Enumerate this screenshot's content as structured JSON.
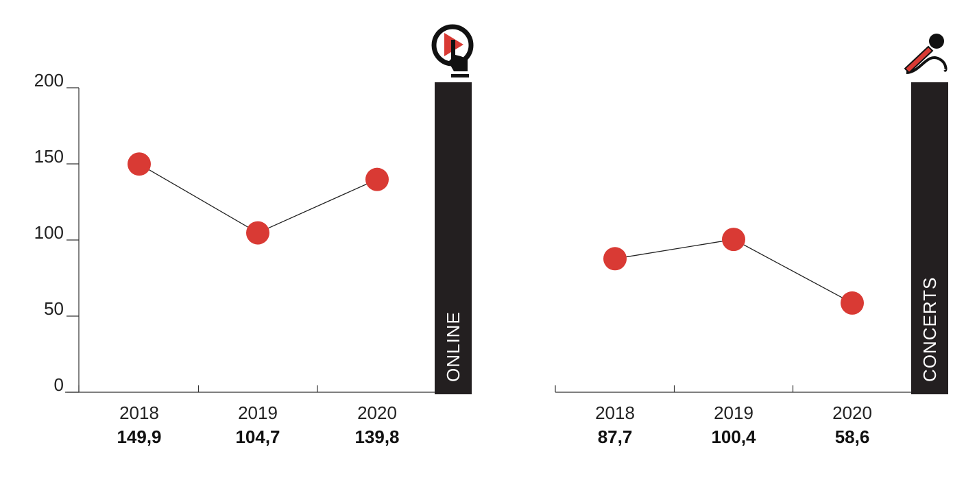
{
  "chart_data": [
    {
      "type": "line",
      "panel_label": "ONLINE",
      "icon": "play-button-hand-icon",
      "categories": [
        "2018",
        "2019",
        "2020"
      ],
      "values": [
        149.9,
        104.7,
        139.8
      ],
      "value_labels": [
        "149,9",
        "104,7",
        "139,8"
      ],
      "ylim": [
        0,
        200
      ],
      "yticks": [
        0,
        50,
        100,
        150,
        200
      ],
      "ytick_labels": [
        "0",
        "50",
        "100",
        "150",
        "200"
      ],
      "grid": false
    },
    {
      "type": "line",
      "panel_label": "CONCERTS",
      "icon": "microphone-icon",
      "categories": [
        "2018",
        "2019",
        "2020"
      ],
      "values": [
        87.7,
        100.4,
        58.6
      ],
      "value_labels": [
        "87,7",
        "100,4",
        "58,6"
      ],
      "ylim": [
        0,
        200
      ],
      "grid": false
    }
  ],
  "colors": {
    "marker": "#d93a34",
    "line": "#222222",
    "bar": "#231f20",
    "axis": "#333333"
  }
}
